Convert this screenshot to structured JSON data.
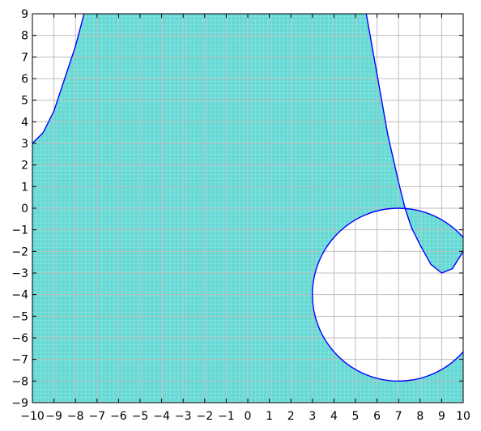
{
  "chart_data": {
    "type": "area",
    "title": "",
    "xlabel": "",
    "ylabel": "",
    "xlim": [
      -10,
      10
    ],
    "ylim": [
      -9,
      9
    ],
    "grid": true,
    "legend": "none",
    "x_ticks": [
      "−10",
      "−9",
      "−8",
      "−7",
      "−6",
      "−5",
      "−4",
      "−3",
      "−2",
      "−1",
      "0",
      "1",
      "2",
      "3",
      "4",
      "5",
      "6",
      "7",
      "8",
      "9",
      "10"
    ],
    "y_ticks": [
      "−9",
      "−8",
      "−7",
      "−6",
      "−5",
      "−4",
      "−3",
      "−2",
      "−1",
      "0",
      "1",
      "2",
      "3",
      "4",
      "5",
      "6",
      "7",
      "8",
      "9"
    ],
    "colors": {
      "fill": "#66d9d5",
      "fill_grid": "#bff0ee",
      "curve": "#0000ff",
      "grid": "#bfbfbf",
      "axes": "#000000"
    },
    "series": [
      {
        "kind": "boundary_curve",
        "points": [
          [
            -10,
            3.0
          ],
          [
            -9.5,
            3.5
          ],
          [
            -9,
            4.5
          ],
          [
            -8.5,
            6.0
          ],
          [
            -8,
            7.5
          ],
          [
            -7.6,
            9.0
          ]
        ]
      },
      {
        "kind": "boundary_curve",
        "points": [
          [
            5.5,
            9.0
          ],
          [
            6.0,
            6.2
          ],
          [
            6.5,
            3.4
          ],
          [
            7.0,
            1.2
          ],
          [
            7.3,
            0.0
          ],
          [
            7.6,
            -0.9
          ],
          [
            8.0,
            -1.7
          ],
          [
            8.5,
            -2.6
          ],
          [
            9.0,
            -3.0
          ],
          [
            9.5,
            -2.8
          ],
          [
            10.0,
            -2.0
          ]
        ]
      },
      {
        "kind": "circle",
        "center": [
          7,
          -4
        ],
        "radius": 4
      }
    ],
    "shaded_region": "left of the curve y ≈ from (−10, 3) rising to (−7.6, 9), up to the right curve through (5.5, 9) and (7.3, 0), excluding the disk centered at (7, −4) with radius 4; also filled below the disk to the right edge"
  }
}
